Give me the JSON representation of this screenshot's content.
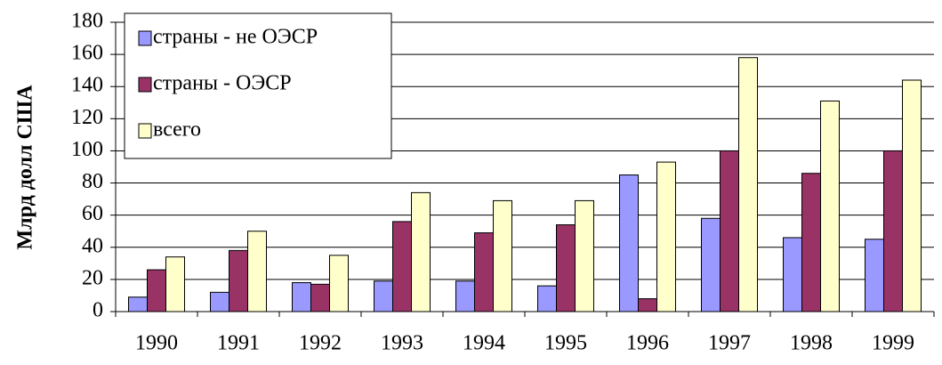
{
  "chart_data": {
    "type": "bar",
    "y_label": "Млрд  долл США",
    "categories": [
      "1990",
      "1991",
      "1992",
      "1993",
      "1994",
      "1995",
      "1996",
      "1997",
      "1998",
      "1999"
    ],
    "series": [
      {
        "name": "страны - не ОЭСР",
        "color": "#9999ff",
        "values": [
          9,
          12,
          18,
          19,
          19,
          16,
          85,
          58,
          46,
          45
        ]
      },
      {
        "name": "страны - ОЭСР",
        "color": "#993366",
        "values": [
          26,
          38,
          17,
          56,
          49,
          54,
          8,
          100,
          86,
          100
        ]
      },
      {
        "name": "всего",
        "color": "#ffffcc",
        "values": [
          34,
          50,
          35,
          74,
          69,
          69,
          93,
          158,
          131,
          144
        ]
      }
    ],
    "ylim": [
      0,
      180
    ],
    "yticks": [
      0,
      20,
      40,
      60,
      80,
      100,
      120,
      140,
      160,
      180
    ],
    "grid": true,
    "legend": "top-left"
  }
}
